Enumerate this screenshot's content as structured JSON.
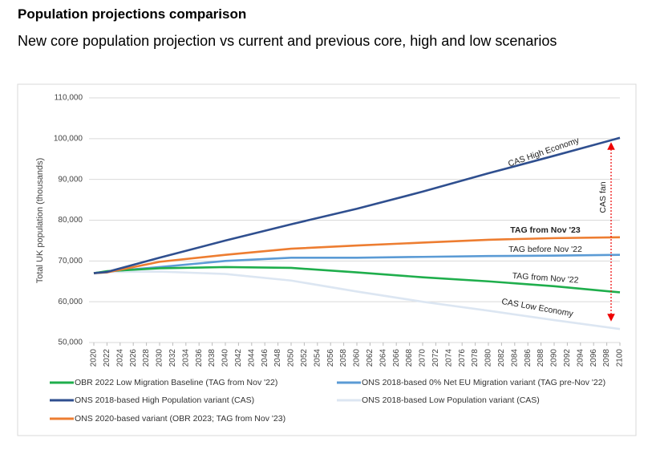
{
  "chart_data": {
    "type": "line",
    "title": "Population projections comparison",
    "subtitle": "New core population projection vs current and previous core, high and low scenarios",
    "y_label": "Total UK population (thousands)",
    "x": [
      2020,
      2022,
      2030,
      2040,
      2050,
      2060,
      2070,
      2080,
      2090,
      2100
    ],
    "xlim": [
      2020,
      2100
    ],
    "xticks": [
      2020,
      2022,
      2024,
      2026,
      2028,
      2030,
      2032,
      2034,
      2036,
      2038,
      2040,
      2042,
      2044,
      2046,
      2048,
      2050,
      2052,
      2054,
      2056,
      2058,
      2060,
      2062,
      2064,
      2066,
      2068,
      2070,
      2072,
      2074,
      2076,
      2078,
      2080,
      2082,
      2084,
      2086,
      2088,
      2090,
      2092,
      2094,
      2096,
      2098,
      2100
    ],
    "ylim": [
      50000,
      110000
    ],
    "yticks": [
      {
        "value": 50000,
        "label": "50,000"
      },
      {
        "value": 60000,
        "label": "60,000"
      },
      {
        "value": 70000,
        "label": "70,000"
      },
      {
        "value": 80000,
        "label": "80,000"
      },
      {
        "value": 90000,
        "label": "90,000"
      },
      {
        "value": 100000,
        "label": "100,000"
      },
      {
        "value": 110000,
        "label": "110,000"
      }
    ],
    "grid": true,
    "series": [
      {
        "name": "OBR 2022 Low Migration Baseline (TAG from Nov '22)",
        "color": "#1fae4c",
        "values": [
          67000,
          67500,
          68200,
          68500,
          68300,
          67200,
          66000,
          65000,
          63800,
          62300
        ]
      },
      {
        "name": "ONS 2018-based 0% Net EU Migration variant (TAG pre-Nov '22)",
        "color": "#5b9bd5",
        "values": [
          67000,
          67400,
          68500,
          70000,
          70800,
          70800,
          71000,
          71200,
          71300,
          71500
        ]
      },
      {
        "name": "ONS 2018-based High Population variant (CAS)",
        "color": "#2f4f8f",
        "values": [
          67000,
          67300,
          70800,
          75000,
          79000,
          82800,
          87000,
          91500,
          95800,
          100200
        ]
      },
      {
        "name": "ONS 2018-based Low Population variant (CAS)",
        "color": "#dce6f2",
        "values": [
          67000,
          67300,
          67400,
          66800,
          65200,
          62500,
          60000,
          57800,
          55500,
          53300
        ]
      },
      {
        "name": "ONS 2020-based variant (OBR 2023; TAG from Nov '23)",
        "color": "#ed7d31",
        "values": [
          67000,
          67200,
          69800,
          71500,
          73000,
          73800,
          74500,
          75200,
          75600,
          75800
        ]
      }
    ],
    "annotations": [
      "CAS High Economy",
      "TAG from Nov '23",
      "TAG before Nov '22",
      "TAG from Nov '22",
      "CAS Low Economy",
      "CAS fan"
    ]
  }
}
